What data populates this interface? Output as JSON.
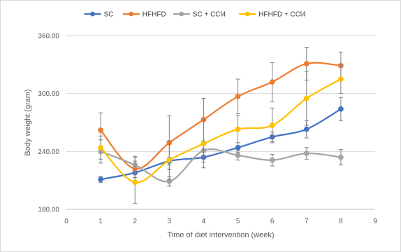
{
  "chart_data": {
    "type": "line",
    "title": "",
    "xlabel": "Time of diet intervention (week)",
    "ylabel": "Body weight (gram)",
    "xlim": [
      0,
      9
    ],
    "ylim": [
      180,
      360
    ],
    "x_ticks": [
      "0",
      "1",
      "2",
      "3",
      "4",
      "5",
      "6",
      "7",
      "8",
      "9"
    ],
    "y_ticks": [
      "180.00",
      "240.00",
      "300.00",
      "360.00"
    ],
    "grid": "horizontal",
    "legend_position": "top",
    "x": [
      1,
      2,
      3,
      4,
      5,
      6,
      7,
      8
    ],
    "series": [
      {
        "name": "SC",
        "color": "#4472C4",
        "values": [
          211,
          218,
          230,
          234,
          244,
          255,
          263,
          284
        ],
        "errors": [
          3,
          5,
          4,
          5,
          5,
          5,
          9,
          12
        ]
      },
      {
        "name": "HFHFD",
        "color": "#ED7D31",
        "values": [
          262,
          222,
          249,
          273,
          297,
          312,
          331,
          329
        ],
        "errors": [
          18,
          13,
          28,
          22,
          18,
          20,
          17,
          14
        ]
      },
      {
        "name": "SC + CCl4",
        "color": "#A5A5A5",
        "values": [
          240,
          226,
          209,
          241,
          236,
          231,
          238,
          234
        ],
        "errors": [
          12,
          8,
          5,
          6,
          5,
          6,
          6,
          8
        ]
      },
      {
        "name": "HFHFD + CCl4",
        "color": "#FFC000",
        "values": [
          244,
          208,
          231,
          248,
          263,
          267,
          295,
          315
        ],
        "errors": [
          12,
          22,
          20,
          25,
          14,
          18,
          28,
          15
        ]
      }
    ]
  }
}
